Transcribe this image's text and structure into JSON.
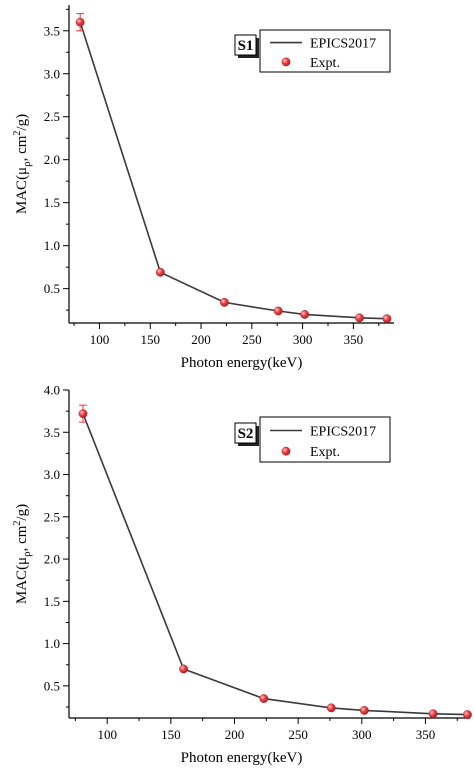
{
  "chart_data": [
    {
      "type": "line",
      "panel_label": "S1",
      "xlabel": "Photon energy(keV)",
      "ylabel_prefix": "MAC(μ",
      "ylabel_sub": "ρ",
      "ylabel_mid": ", cm",
      "ylabel_sup": "2",
      "ylabel_suffix": "/g)",
      "xlim": [
        70,
        390
      ],
      "ylim": [
        0.1,
        3.8
      ],
      "xticks": [
        100,
        150,
        200,
        250,
        300,
        350
      ],
      "xtick_labels": [
        "100",
        "150",
        "200",
        "250",
        "300",
        "350"
      ],
      "yticks": [
        0.5,
        1.0,
        1.5,
        2.0,
        2.5,
        3.0,
        3.5
      ],
      "ytick_labels": [
        "0.5",
        "1.0",
        "1.5",
        "2.0",
        "2.5",
        "3.0",
        "3.5"
      ],
      "legend_position": "top-right",
      "colors": {
        "line": "#3a3a3a",
        "marker": "#e8383d",
        "errorbar": "#e8383d"
      },
      "series": [
        {
          "name": "EPICS2017",
          "kind": "line",
          "x": [
            81,
            160,
            223,
            276,
            302,
            356,
            383
          ],
          "y": [
            3.6,
            0.69,
            0.34,
            0.24,
            0.2,
            0.16,
            0.15
          ]
        },
        {
          "name": "Expt.",
          "kind": "scatter",
          "x": [
            81,
            160,
            223,
            276,
            302,
            356,
            383
          ],
          "y": [
            3.6,
            0.69,
            0.34,
            0.24,
            0.2,
            0.16,
            0.15
          ],
          "yerr": [
            0.1,
            0.02,
            0.01,
            0.01,
            0.01,
            0.01,
            0.01
          ]
        }
      ]
    },
    {
      "type": "line",
      "panel_label": "S2",
      "xlabel": "Photon energy(keV)",
      "ylabel_prefix": "MAC(μ",
      "ylabel_sub": "ρ",
      "ylabel_mid": ", cm",
      "ylabel_sup": "2",
      "ylabel_suffix": "/g)",
      "xlim": [
        70,
        385
      ],
      "ylim": [
        0.12,
        4.0
      ],
      "xticks": [
        100,
        150,
        200,
        250,
        300,
        350
      ],
      "xtick_labels": [
        "100",
        "150",
        "200",
        "250",
        "300",
        "350"
      ],
      "yticks": [
        0.5,
        1.0,
        1.5,
        2.0,
        2.5,
        3.0,
        3.5,
        4.0
      ],
      "ytick_labels": [
        "0.5",
        "1.0",
        "1.5",
        "2.0",
        "2.5",
        "3.0",
        "3.5",
        "4.0"
      ],
      "legend_position": "top-right",
      "colors": {
        "line": "#3a3a3a",
        "marker": "#e8383d",
        "errorbar": "#e8383d"
      },
      "series": [
        {
          "name": "EPICS2017",
          "kind": "line",
          "x": [
            81,
            160,
            223,
            276,
            302,
            356,
            383
          ],
          "y": [
            3.72,
            0.7,
            0.35,
            0.24,
            0.21,
            0.17,
            0.16
          ]
        },
        {
          "name": "Expt.",
          "kind": "scatter",
          "x": [
            81,
            160,
            223,
            276,
            302,
            356,
            383
          ],
          "y": [
            3.72,
            0.7,
            0.35,
            0.24,
            0.21,
            0.17,
            0.16
          ],
          "yerr": [
            0.1,
            0.02,
            0.01,
            0.01,
            0.01,
            0.01,
            0.01
          ]
        }
      ]
    }
  ]
}
